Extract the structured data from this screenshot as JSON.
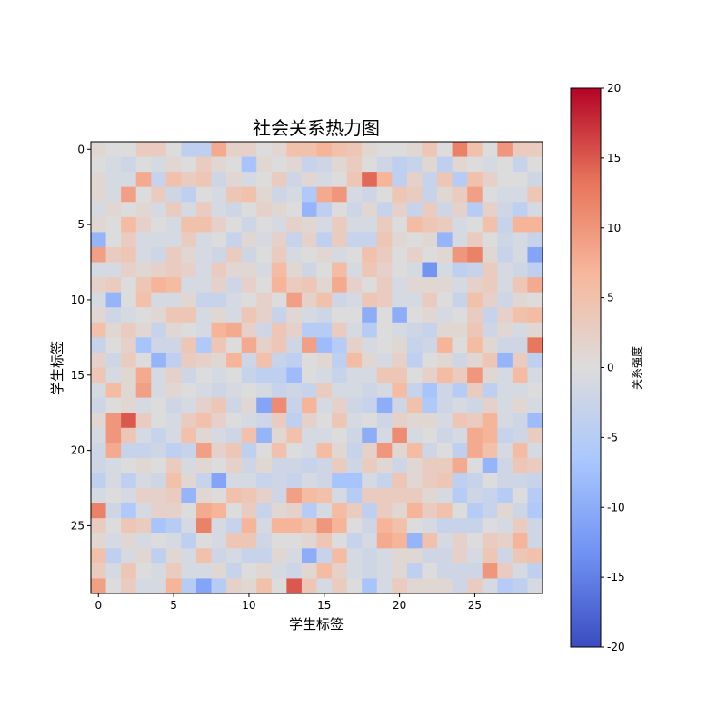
{
  "chart_data": {
    "type": "heatmap",
    "title": "社会关系热力图",
    "xlabel": "学生标签",
    "ylabel": "学生标签",
    "colorbar_label": "关系强度",
    "rows": 30,
    "cols": 30,
    "xlim": [
      -0.5,
      29.5
    ],
    "ylim": [
      29.5,
      -0.5
    ],
    "xticks": [
      0,
      5,
      10,
      15,
      20,
      25
    ],
    "yticks": [
      0,
      5,
      10,
      15,
      20,
      25
    ],
    "vmin": -20,
    "vmax": 20,
    "colorbar_ticks": [
      20,
      15,
      10,
      5,
      0,
      -5,
      -10,
      -15,
      -20
    ],
    "colormap": "coolwarm",
    "colormap_stops": [
      "#3b4cc0",
      "#6f92f3",
      "#aac7fd",
      "#dddcdc",
      "#f7b89c",
      "#e7745b",
      "#b40426"
    ],
    "values": [
      [
        1,
        0,
        0,
        3,
        3,
        0,
        -4,
        -4,
        8,
        2,
        2,
        0,
        1,
        5,
        5,
        7,
        5,
        4,
        1,
        0,
        0,
        1,
        4,
        0,
        12,
        5,
        0,
        10,
        3,
        3
      ],
      [
        0,
        -1,
        -2,
        0,
        -1,
        1,
        0,
        3,
        1,
        0,
        -7,
        1,
        0,
        1,
        -3,
        -2,
        1,
        3,
        0,
        -2,
        -4,
        -3,
        1,
        -4,
        1,
        0,
        -1,
        0,
        -3,
        0
      ],
      [
        1,
        -1,
        -1,
        8,
        -3,
        5,
        3,
        4,
        -2,
        1,
        -1,
        0,
        3,
        -2,
        1,
        -1,
        0,
        4,
        14,
        7,
        -4,
        2,
        -3,
        4,
        -5,
        5,
        2,
        0,
        0,
        -2
      ],
      [
        1,
        -1,
        9,
        0,
        3,
        -2,
        -4,
        0,
        -1,
        4,
        5,
        1,
        -2,
        -1,
        -6,
        8,
        10,
        -1,
        -2,
        0,
        4,
        3,
        -3,
        1,
        3,
        9,
        0,
        -1,
        -1,
        4
      ],
      [
        -1,
        1,
        0,
        1,
        -1,
        3,
        -1,
        3,
        -1,
        -2,
        0,
        2,
        1,
        0,
        -9,
        -4,
        0,
        -2,
        1,
        -3,
        2,
        -3,
        3,
        -2,
        2,
        -5,
        2,
        -2,
        -4,
        -1
      ],
      [
        1,
        0,
        6,
        2,
        0,
        -1,
        5,
        5,
        2,
        0,
        -2,
        0,
        -1,
        2,
        1,
        -1,
        3,
        -1,
        -1,
        3,
        0,
        6,
        4,
        3,
        -1,
        0,
        5,
        -3,
        7,
        7
      ],
      [
        -9,
        0,
        3,
        -1,
        -1,
        -1,
        3,
        -1,
        0,
        -3,
        1,
        -1,
        2,
        -3,
        2,
        -4,
        3,
        -3,
        -3,
        4,
        1,
        0,
        1,
        -9,
        -1,
        3,
        0,
        -2,
        -1,
        -3
      ],
      [
        9,
        3,
        4,
        -1,
        -2,
        3,
        1,
        -1,
        -2,
        3,
        -2,
        0,
        3,
        -1,
        0,
        1,
        -1,
        0,
        5,
        3,
        0,
        2,
        0,
        1,
        10,
        12,
        1,
        -3,
        -1,
        -11
      ],
      [
        -1,
        -1,
        2,
        1,
        2,
        3,
        2,
        -1,
        3,
        1,
        1,
        -1,
        6,
        1,
        -2,
        0,
        6,
        -1,
        4,
        2,
        0,
        -1,
        -13,
        -1,
        -4,
        -3,
        3,
        -1,
        -2,
        -4
      ],
      [
        2,
        3,
        0,
        4,
        7,
        6,
        -1,
        -1,
        2,
        -2,
        2,
        0,
        7,
        3,
        4,
        1,
        8,
        2,
        0,
        3,
        -1,
        1,
        1,
        1,
        -1,
        2,
        3,
        -1,
        4,
        8
      ],
      [
        -1,
        -9,
        0,
        5,
        -1,
        -1,
        1,
        -3,
        -3,
        -1,
        0,
        2,
        0,
        9,
        2,
        5,
        -2,
        -1,
        4,
        3,
        -1,
        -1,
        3,
        0,
        -3,
        5,
        2,
        -2,
        1,
        0
      ],
      [
        1,
        -2,
        -1,
        0,
        1,
        4,
        4,
        -1,
        1,
        -1,
        4,
        2,
        -3,
        1,
        -1,
        -2,
        0,
        0,
        -10,
        0,
        -10,
        0,
        1,
        -1,
        0,
        3,
        -3,
        2,
        5,
        6
      ],
      [
        5,
        1,
        3,
        1,
        -3,
        1,
        0,
        -1,
        7,
        8,
        2,
        -2,
        4,
        2,
        -5,
        -5,
        3,
        -1,
        -5,
        0,
        -1,
        -2,
        -3,
        1,
        1,
        4,
        -2,
        1,
        -1,
        1
      ],
      [
        -3,
        0,
        2,
        -7,
        -2,
        -2,
        4,
        -6,
        4,
        0,
        8,
        2,
        4,
        -2,
        9,
        -8,
        -5,
        2,
        -1,
        0,
        1,
        -3,
        -2,
        7,
        0,
        6,
        1,
        -2,
        -2,
        13
      ],
      [
        2,
        -2,
        3,
        0,
        -9,
        -4,
        3,
        2,
        1,
        7,
        -2,
        5,
        -3,
        -4,
        0,
        1,
        -4,
        6,
        1,
        -1,
        2,
        -4,
        0,
        1,
        -2,
        1,
        4,
        -9,
        3,
        -4
      ],
      [
        4,
        -1,
        1,
        8,
        -1,
        2,
        -2,
        0,
        -1,
        0,
        -3,
        -4,
        -4,
        -8,
        0,
        -1,
        -3,
        -1,
        -1,
        4,
        4,
        0,
        2,
        6,
        3,
        10,
        1,
        -1,
        6,
        -1
      ],
      [
        -1,
        6,
        1,
        9,
        -1,
        1,
        0,
        -1,
        -2,
        -1,
        0,
        -1,
        -3,
        -2,
        -3,
        3,
        -1,
        -1,
        -2,
        -1,
        6,
        -3,
        -7,
        -2,
        -5,
        3,
        -4,
        -1,
        -1,
        0
      ],
      [
        -2,
        0,
        1,
        -1,
        0,
        -2,
        -1,
        2,
        4,
        -2,
        1,
        -11,
        11,
        -3,
        7,
        -1,
        2,
        -2,
        -3,
        -10,
        -2,
        5,
        -6,
        -2,
        -1,
        -2,
        2,
        -1,
        1,
        -1
      ],
      [
        1,
        10,
        15,
        3,
        0,
        -1,
        3,
        5,
        2,
        0,
        -1,
        -2,
        3,
        -4,
        2,
        0,
        4,
        -1,
        0,
        -2,
        2,
        1,
        1,
        -1,
        4,
        3,
        7,
        -1,
        -2,
        -8
      ],
      [
        -1,
        10,
        4,
        -1,
        -3,
        -1,
        5,
        1,
        -1,
        -2,
        5,
        -9,
        1,
        5,
        -1,
        -1,
        0,
        -2,
        -10,
        -1,
        11,
        -1,
        0,
        -2,
        -1,
        8,
        7,
        -3,
        -2,
        3
      ],
      [
        -2,
        8,
        -3,
        -3,
        -2,
        -4,
        -3,
        9,
        2,
        4,
        -4,
        0,
        5,
        0,
        -1,
        6,
        1,
        -3,
        2,
        10,
        1,
        6,
        -2,
        0,
        -4,
        8,
        5,
        -1,
        6,
        -1
      ],
      [
        -2,
        -1,
        0,
        1,
        0,
        3,
        -1,
        1,
        0,
        2,
        -2,
        1,
        -2,
        -2,
        -3,
        -2,
        3,
        -2,
        3,
        1,
        -2,
        1,
        3,
        3,
        8,
        0,
        -9,
        -2,
        4,
        3
      ],
      [
        -4,
        -1,
        -4,
        -1,
        -2,
        5,
        1,
        -3,
        -11,
        -1,
        -1,
        -3,
        -2,
        -3,
        -1,
        -2,
        -7,
        -7,
        -1,
        -3,
        4,
        1,
        3,
        4,
        -4,
        -3,
        0,
        -2,
        -2,
        -3
      ],
      [
        -1,
        0,
        -1,
        2,
        2,
        3,
        -9,
        1,
        0,
        5,
        4,
        2,
        -2,
        9,
        6,
        5,
        -1,
        -5,
        3,
        3,
        3,
        3,
        1,
        -1,
        -5,
        -2,
        -3,
        -5,
        0,
        -5
      ],
      [
        12,
        -2,
        -6,
        -1,
        2,
        2,
        0,
        8,
        7,
        0,
        3,
        -3,
        1,
        2,
        -5,
        -1,
        6,
        3,
        -4,
        3,
        1,
        7,
        3,
        5,
        0,
        -5,
        -3,
        1,
        -2,
        -6
      ],
      [
        3,
        0,
        4,
        3,
        -7,
        -5,
        -1,
        12,
        -1,
        -3,
        7,
        -1,
        7,
        7,
        5,
        10,
        7,
        0,
        -2,
        7,
        5,
        0,
        -1,
        -3,
        -3,
        -3,
        0,
        -1,
        3,
        -2
      ],
      [
        1,
        -1,
        1,
        -1,
        0,
        -1,
        -4,
        0,
        -1,
        4,
        4,
        -2,
        0,
        0,
        1,
        4,
        0,
        -3,
        -1,
        8,
        7,
        -9,
        5,
        -1,
        2,
        0,
        3,
        2,
        7,
        -2
      ],
      [
        5,
        -4,
        -1,
        1,
        -4,
        1,
        -1,
        5,
        -2,
        -1,
        -3,
        -3,
        1,
        -1,
        -10,
        -3,
        6,
        -1,
        -2,
        -1,
        1,
        1,
        -2,
        -2,
        2,
        -1,
        4,
        -2,
        4,
        5
      ],
      [
        3,
        -1,
        4,
        0,
        -1,
        3,
        -1,
        -1,
        1,
        -3,
        0,
        1,
        -1,
        -2,
        1,
        6,
        2,
        -1,
        -2,
        -1,
        1,
        -4,
        0,
        -2,
        -2,
        -2,
        10,
        3,
        -1,
        -4
      ],
      [
        9,
        0,
        3,
        -1,
        -1,
        7,
        -5,
        -11,
        -5,
        2,
        1,
        5,
        0,
        15,
        4,
        -1,
        3,
        0,
        -7,
        -1,
        3,
        1,
        1,
        1,
        -2,
        3,
        -1,
        -5,
        -4,
        -1
      ]
    ]
  }
}
